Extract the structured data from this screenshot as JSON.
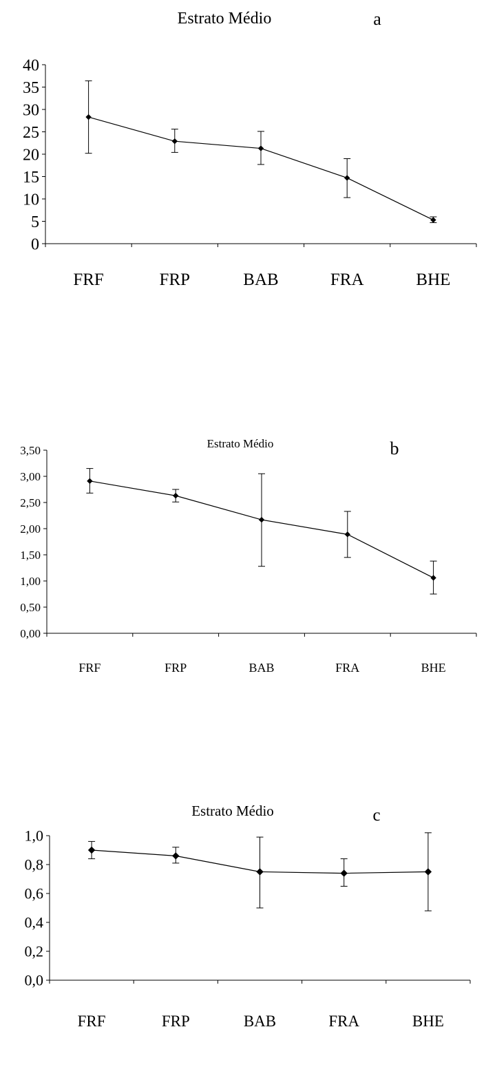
{
  "chart_data": [
    {
      "type": "line",
      "title": "Estrato Médio",
      "panel_label": "a",
      "categories": [
        "FRF",
        "FRP",
        "BAB",
        "FRA",
        "BHE"
      ],
      "series": [
        {
          "values": [
            28.3,
            22.9,
            21.3,
            14.7,
            5.3
          ],
          "error_low": [
            20.2,
            20.4,
            17.7,
            10.3,
            4.7
          ],
          "error_high": [
            36.4,
            25.6,
            25.1,
            19.0,
            6.0
          ]
        }
      ],
      "ylim": [
        0,
        40
      ],
      "yticks": [
        "0",
        "5",
        "10",
        "15",
        "20",
        "25",
        "30",
        "35",
        "40"
      ],
      "ytick_values": [
        0,
        5,
        10,
        15,
        20,
        25,
        30,
        35,
        40
      ],
      "grid": false,
      "xlabel": "",
      "ylabel": ""
    },
    {
      "type": "line",
      "title": "Estrato Médio",
      "panel_label": "b",
      "categories": [
        "FRF",
        "FRP",
        "BAB",
        "FRA",
        "BHE"
      ],
      "series": [
        {
          "values": [
            2.91,
            2.63,
            2.17,
            1.89,
            1.06
          ],
          "error_low": [
            2.68,
            2.51,
            1.28,
            1.45,
            0.75
          ],
          "error_high": [
            3.15,
            2.75,
            3.05,
            2.33,
            1.38
          ]
        }
      ],
      "ylim": [
        0,
        3.5
      ],
      "yticks": [
        "0,00",
        "0,50",
        "1,00",
        "1,50",
        "2,00",
        "2,50",
        "3,00",
        "3,50"
      ],
      "ytick_values": [
        0,
        0.5,
        1.0,
        1.5,
        2.0,
        2.5,
        3.0,
        3.5
      ],
      "grid": false,
      "xlabel": "",
      "ylabel": ""
    },
    {
      "type": "line",
      "title": "Estrato Médio",
      "panel_label": "c",
      "categories": [
        "FRF",
        "FRP",
        "BAB",
        "FRA",
        "BHE"
      ],
      "series": [
        {
          "values": [
            0.9,
            0.86,
            0.75,
            0.74,
            0.75
          ],
          "error_low": [
            0.84,
            0.81,
            0.5,
            0.65,
            0.48
          ],
          "error_high": [
            0.96,
            0.92,
            0.99,
            0.84,
            1.02
          ]
        }
      ],
      "ylim": [
        0,
        1.0
      ],
      "yticks": [
        "0,0",
        "0,2",
        "0,4",
        "0,6",
        "0,8",
        "1,0"
      ],
      "ytick_values": [
        0,
        0.2,
        0.4,
        0.6,
        0.8,
        1.0
      ],
      "grid": false,
      "xlabel": "",
      "ylabel": ""
    }
  ]
}
